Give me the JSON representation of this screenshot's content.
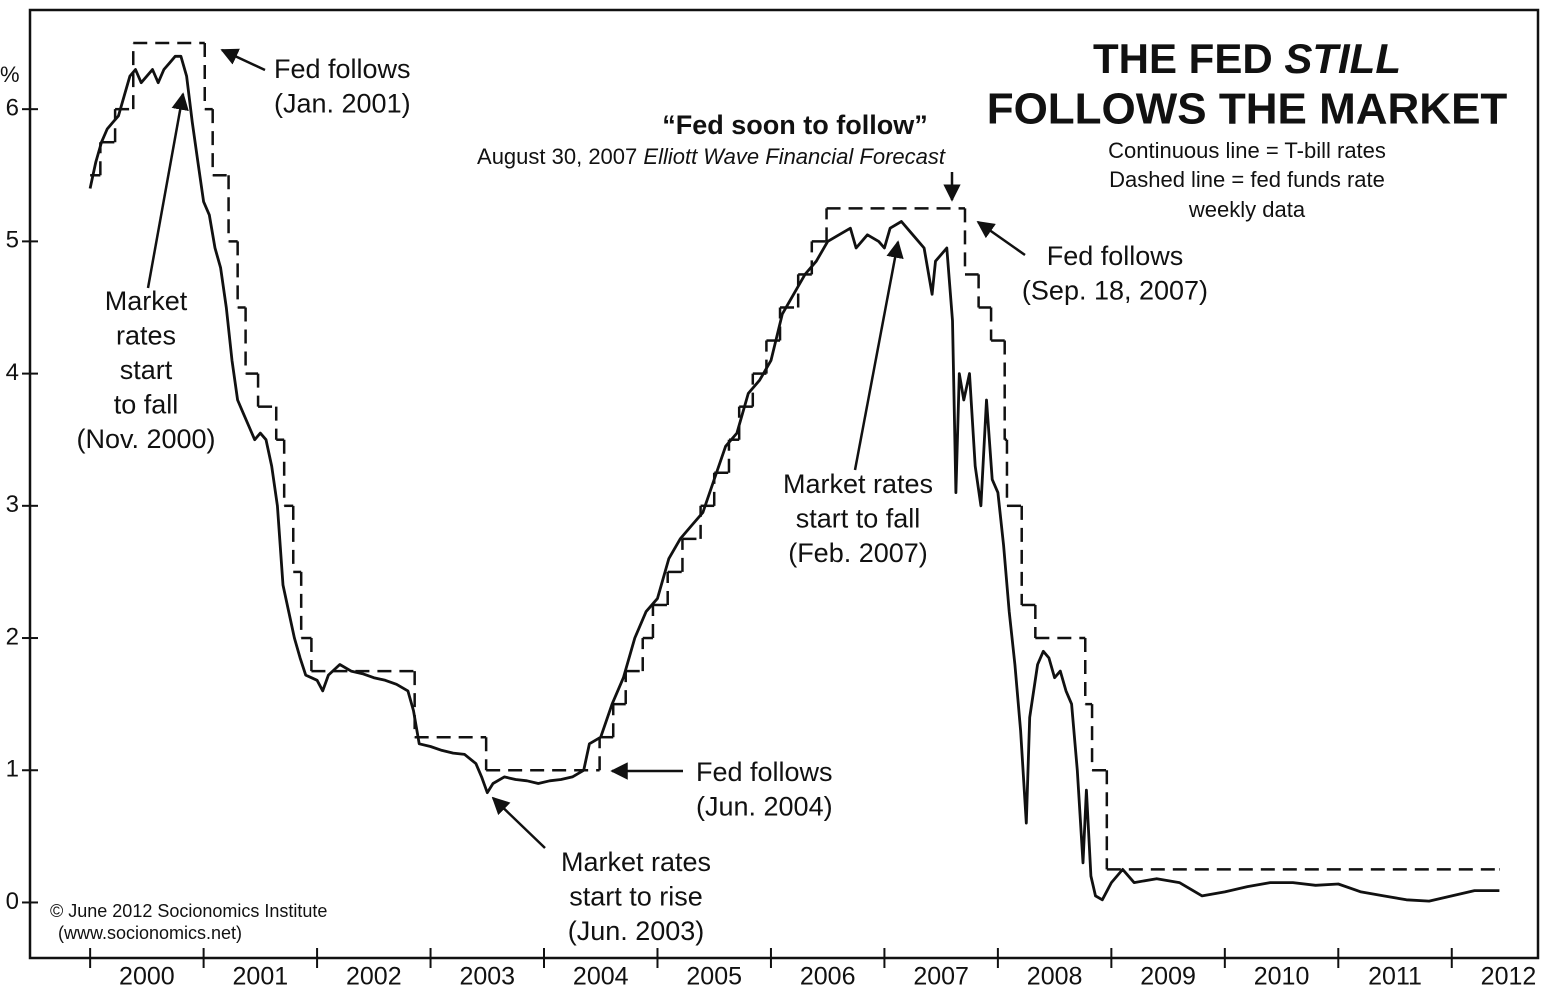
{
  "chart_data": {
    "type": "line",
    "title": {
      "line1": "THE FED",
      "line1_italic": "STILL",
      "line2": "FOLLOWS THE MARKET"
    },
    "legend_notes": [
      "Continuous line = T-bill rates",
      "Dashed line = fed funds rate",
      "weekly data"
    ],
    "y_label": "%",
    "xlim": [
      1999.47,
      2012.76
    ],
    "xticks": [
      2000,
      2001,
      2002,
      2003,
      2004,
      2005,
      2006,
      2007,
      2008,
      2009,
      2010,
      2011,
      2012
    ],
    "ylim": [
      -0.42,
      6.75
    ],
    "yticks": [
      0,
      1,
      2,
      3,
      4,
      5,
      6
    ],
    "series": [
      {
        "style": "solid",
        "color": "#111111",
        "x": [
          2000.0,
          2000.05,
          2000.1,
          2000.15,
          2000.2,
          2000.25,
          2000.3,
          2000.35,
          2000.4,
          2000.45,
          2000.5,
          2000.55,
          2000.6,
          2000.65,
          2000.7,
          2000.75,
          2000.8,
          2000.85,
          2000.9,
          2000.95,
          2001.0,
          2001.05,
          2001.1,
          2001.15,
          2001.2,
          2001.25,
          2001.3,
          2001.35,
          2001.4,
          2001.45,
          2001.5,
          2001.55,
          2001.6,
          2001.65,
          2001.7,
          2001.75,
          2001.8,
          2001.85,
          2001.9,
          2001.95,
          2002.0,
          2002.05,
          2002.1,
          2002.2,
          2002.3,
          2002.4,
          2002.5,
          2002.6,
          2002.7,
          2002.8,
          2002.85,
          2002.9,
          2003.0,
          2003.1,
          2003.2,
          2003.3,
          2003.4,
          2003.45,
          2003.5,
          2003.55,
          2003.65,
          2003.75,
          2003.85,
          2003.95,
          2004.05,
          2004.15,
          2004.25,
          2004.35,
          2004.4,
          2004.5,
          2004.6,
          2004.7,
          2004.8,
          2004.9,
          2005.0,
          2005.1,
          2005.2,
          2005.3,
          2005.4,
          2005.5,
          2005.6,
          2005.7,
          2005.8,
          2005.9,
          2006.0,
          2006.1,
          2006.2,
          2006.3,
          2006.4,
          2006.5,
          2006.6,
          2006.7,
          2006.75,
          2006.85,
          2006.95,
          2007.0,
          2007.05,
          2007.15,
          2007.25,
          2007.35,
          2007.42,
          2007.45,
          2007.55,
          2007.6,
          2007.63,
          2007.66,
          2007.7,
          2007.75,
          2007.8,
          2007.85,
          2007.9,
          2007.95,
          2008.0,
          2008.05,
          2008.1,
          2008.15,
          2008.2,
          2008.25,
          2008.28,
          2008.35,
          2008.4,
          2008.45,
          2008.5,
          2008.55,
          2008.6,
          2008.65,
          2008.7,
          2008.75,
          2008.78,
          2008.82,
          2008.86,
          2008.92,
          2009.0,
          2009.1,
          2009.2,
          2009.4,
          2009.6,
          2009.8,
          2010.0,
          2010.2,
          2010.4,
          2010.6,
          2010.8,
          2011.0,
          2011.2,
          2011.4,
          2011.6,
          2011.8,
          2012.0,
          2012.2,
          2012.42
        ],
        "values": [
          5.4,
          5.6,
          5.75,
          5.85,
          5.9,
          5.95,
          6.1,
          6.25,
          6.3,
          6.2,
          6.25,
          6.3,
          6.2,
          6.3,
          6.35,
          6.4,
          6.4,
          6.25,
          5.9,
          5.6,
          5.3,
          5.2,
          4.95,
          4.8,
          4.5,
          4.1,
          3.8,
          3.7,
          3.6,
          3.5,
          3.55,
          3.5,
          3.3,
          3.0,
          2.4,
          2.2,
          2.0,
          1.85,
          1.72,
          1.7,
          1.68,
          1.6,
          1.72,
          1.8,
          1.75,
          1.73,
          1.7,
          1.68,
          1.65,
          1.6,
          1.45,
          1.2,
          1.18,
          1.15,
          1.13,
          1.12,
          1.05,
          0.95,
          0.83,
          0.9,
          0.95,
          0.93,
          0.92,
          0.9,
          0.92,
          0.93,
          0.95,
          1.0,
          1.2,
          1.25,
          1.5,
          1.7,
          2.0,
          2.2,
          2.3,
          2.6,
          2.75,
          2.85,
          2.95,
          3.2,
          3.45,
          3.55,
          3.85,
          3.95,
          4.1,
          4.45,
          4.6,
          4.75,
          4.85,
          5.0,
          5.05,
          5.1,
          4.95,
          5.05,
          5.0,
          4.95,
          5.1,
          5.15,
          5.05,
          4.95,
          4.6,
          4.85,
          4.95,
          4.4,
          3.1,
          4.0,
          3.8,
          4.0,
          3.3,
          3.0,
          3.8,
          3.2,
          3.1,
          2.7,
          2.2,
          1.8,
          1.3,
          0.6,
          1.4,
          1.8,
          1.9,
          1.85,
          1.7,
          1.75,
          1.6,
          1.5,
          1.0,
          0.3,
          0.85,
          0.2,
          0.05,
          0.02,
          0.15,
          0.25,
          0.15,
          0.18,
          0.15,
          0.05,
          0.08,
          0.12,
          0.15,
          0.15,
          0.13,
          0.14,
          0.08,
          0.05,
          0.02,
          0.01,
          0.05,
          0.09,
          0.09
        ]
      },
      {
        "style": "dashed-step",
        "color": "#111111",
        "x": [
          2000.0,
          2000.09,
          2000.22,
          2000.38,
          2001.01,
          2001.08,
          2001.22,
          2001.3,
          2001.37,
          2001.48,
          2001.64,
          2001.71,
          2001.79,
          2001.86,
          2001.95,
          2002.86,
          2003.49,
          2004.49,
          2004.61,
          2004.72,
          2004.87,
          2004.96,
          2005.09,
          2005.22,
          2005.38,
          2005.5,
          2005.63,
          2005.72,
          2005.84,
          2005.96,
          2006.08,
          2006.24,
          2006.36,
          2006.49,
          2007.71,
          2007.83,
          2007.94,
          2008.06,
          2008.08,
          2008.21,
          2008.33,
          2008.77,
          2008.83,
          2008.96,
          2012.42
        ],
        "values": [
          5.5,
          5.75,
          6.0,
          6.5,
          6.0,
          5.5,
          5.0,
          4.5,
          4.0,
          3.75,
          3.5,
          3.0,
          2.5,
          2.0,
          1.75,
          1.25,
          1.0,
          1.25,
          1.5,
          1.75,
          2.0,
          2.25,
          2.5,
          2.75,
          3.0,
          3.25,
          3.5,
          3.75,
          4.0,
          4.25,
          4.5,
          4.75,
          5.0,
          5.25,
          4.75,
          4.5,
          4.25,
          3.5,
          3.0,
          2.25,
          2.0,
          1.5,
          1.0,
          0.25,
          0.25
        ]
      }
    ],
    "annotations": [
      {
        "lines": [
          "Fed follows",
          "(Jan. 2001)"
        ]
      },
      {
        "lines": [
          "Market",
          "rates",
          "start",
          "to fall",
          "(Nov. 2000)"
        ]
      },
      {
        "lines": [
          "Fed follows",
          "(Sep. 18, 2007)"
        ]
      },
      {
        "lines": [
          "Market rates",
          "start to fall",
          "(Feb. 2007)"
        ]
      },
      {
        "lines": [
          "Fed follows",
          "(Jun. 2004)"
        ]
      },
      {
        "lines": [
          "Market rates",
          "start to rise",
          "(Jun. 2003)"
        ]
      }
    ],
    "quote": {
      "headline": "“Fed soon to follow”",
      "source_date": "August 30, 2007",
      "source_name": "Elliott Wave Financial Forecast"
    },
    "credits": [
      "© June 2012 Socionomics Institute",
      "(www.socionomics.net)"
    ]
  }
}
